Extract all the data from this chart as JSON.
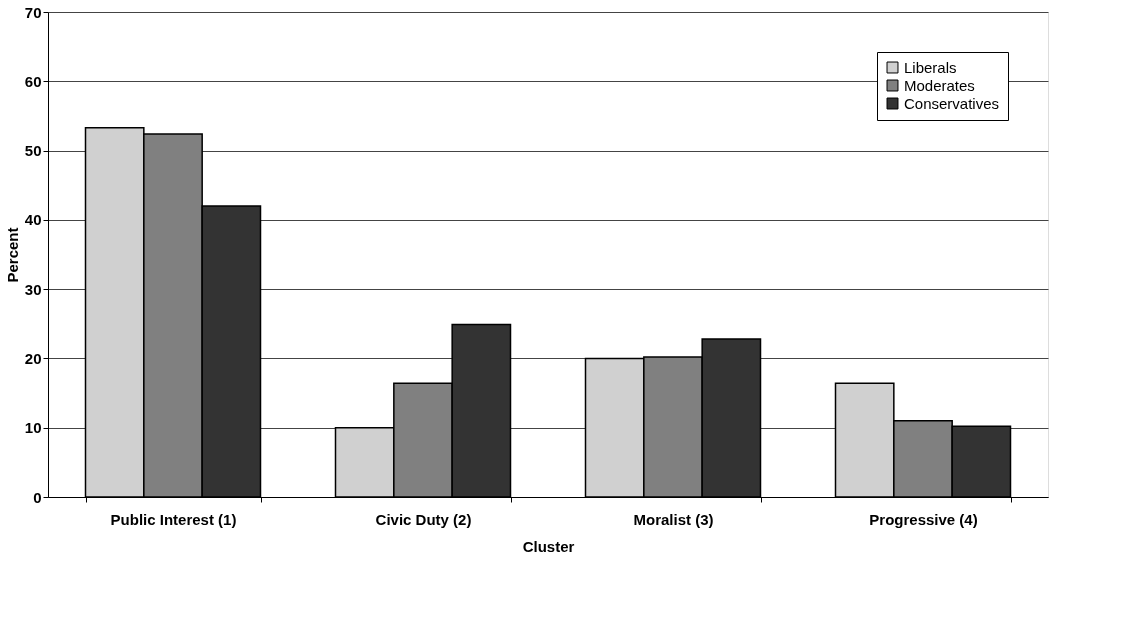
{
  "chart_data": {
    "type": "bar",
    "xlabel": "Cluster",
    "ylabel": "Percent",
    "categories": [
      "Public Interest  (1)",
      "Civic Duty  (2)",
      "Moralist (3)",
      "Progressive (4)"
    ],
    "series": [
      {
        "name": "Liberals",
        "color": "#d0d0d0",
        "values": [
          53.3,
          10.0,
          20.0,
          16.4
        ]
      },
      {
        "name": "Moderates",
        "color": "#808080",
        "values": [
          52.4,
          16.4,
          20.2,
          11.0
        ]
      },
      {
        "name": "Conservatives",
        "color": "#333333",
        "values": [
          42.0,
          24.9,
          22.8,
          10.2
        ]
      }
    ],
    "ylim": [
      0,
      70
    ],
    "yticks": [
      0,
      10,
      20,
      30,
      40,
      50,
      60,
      70
    ],
    "grid": "y",
    "legend": "top right"
  }
}
